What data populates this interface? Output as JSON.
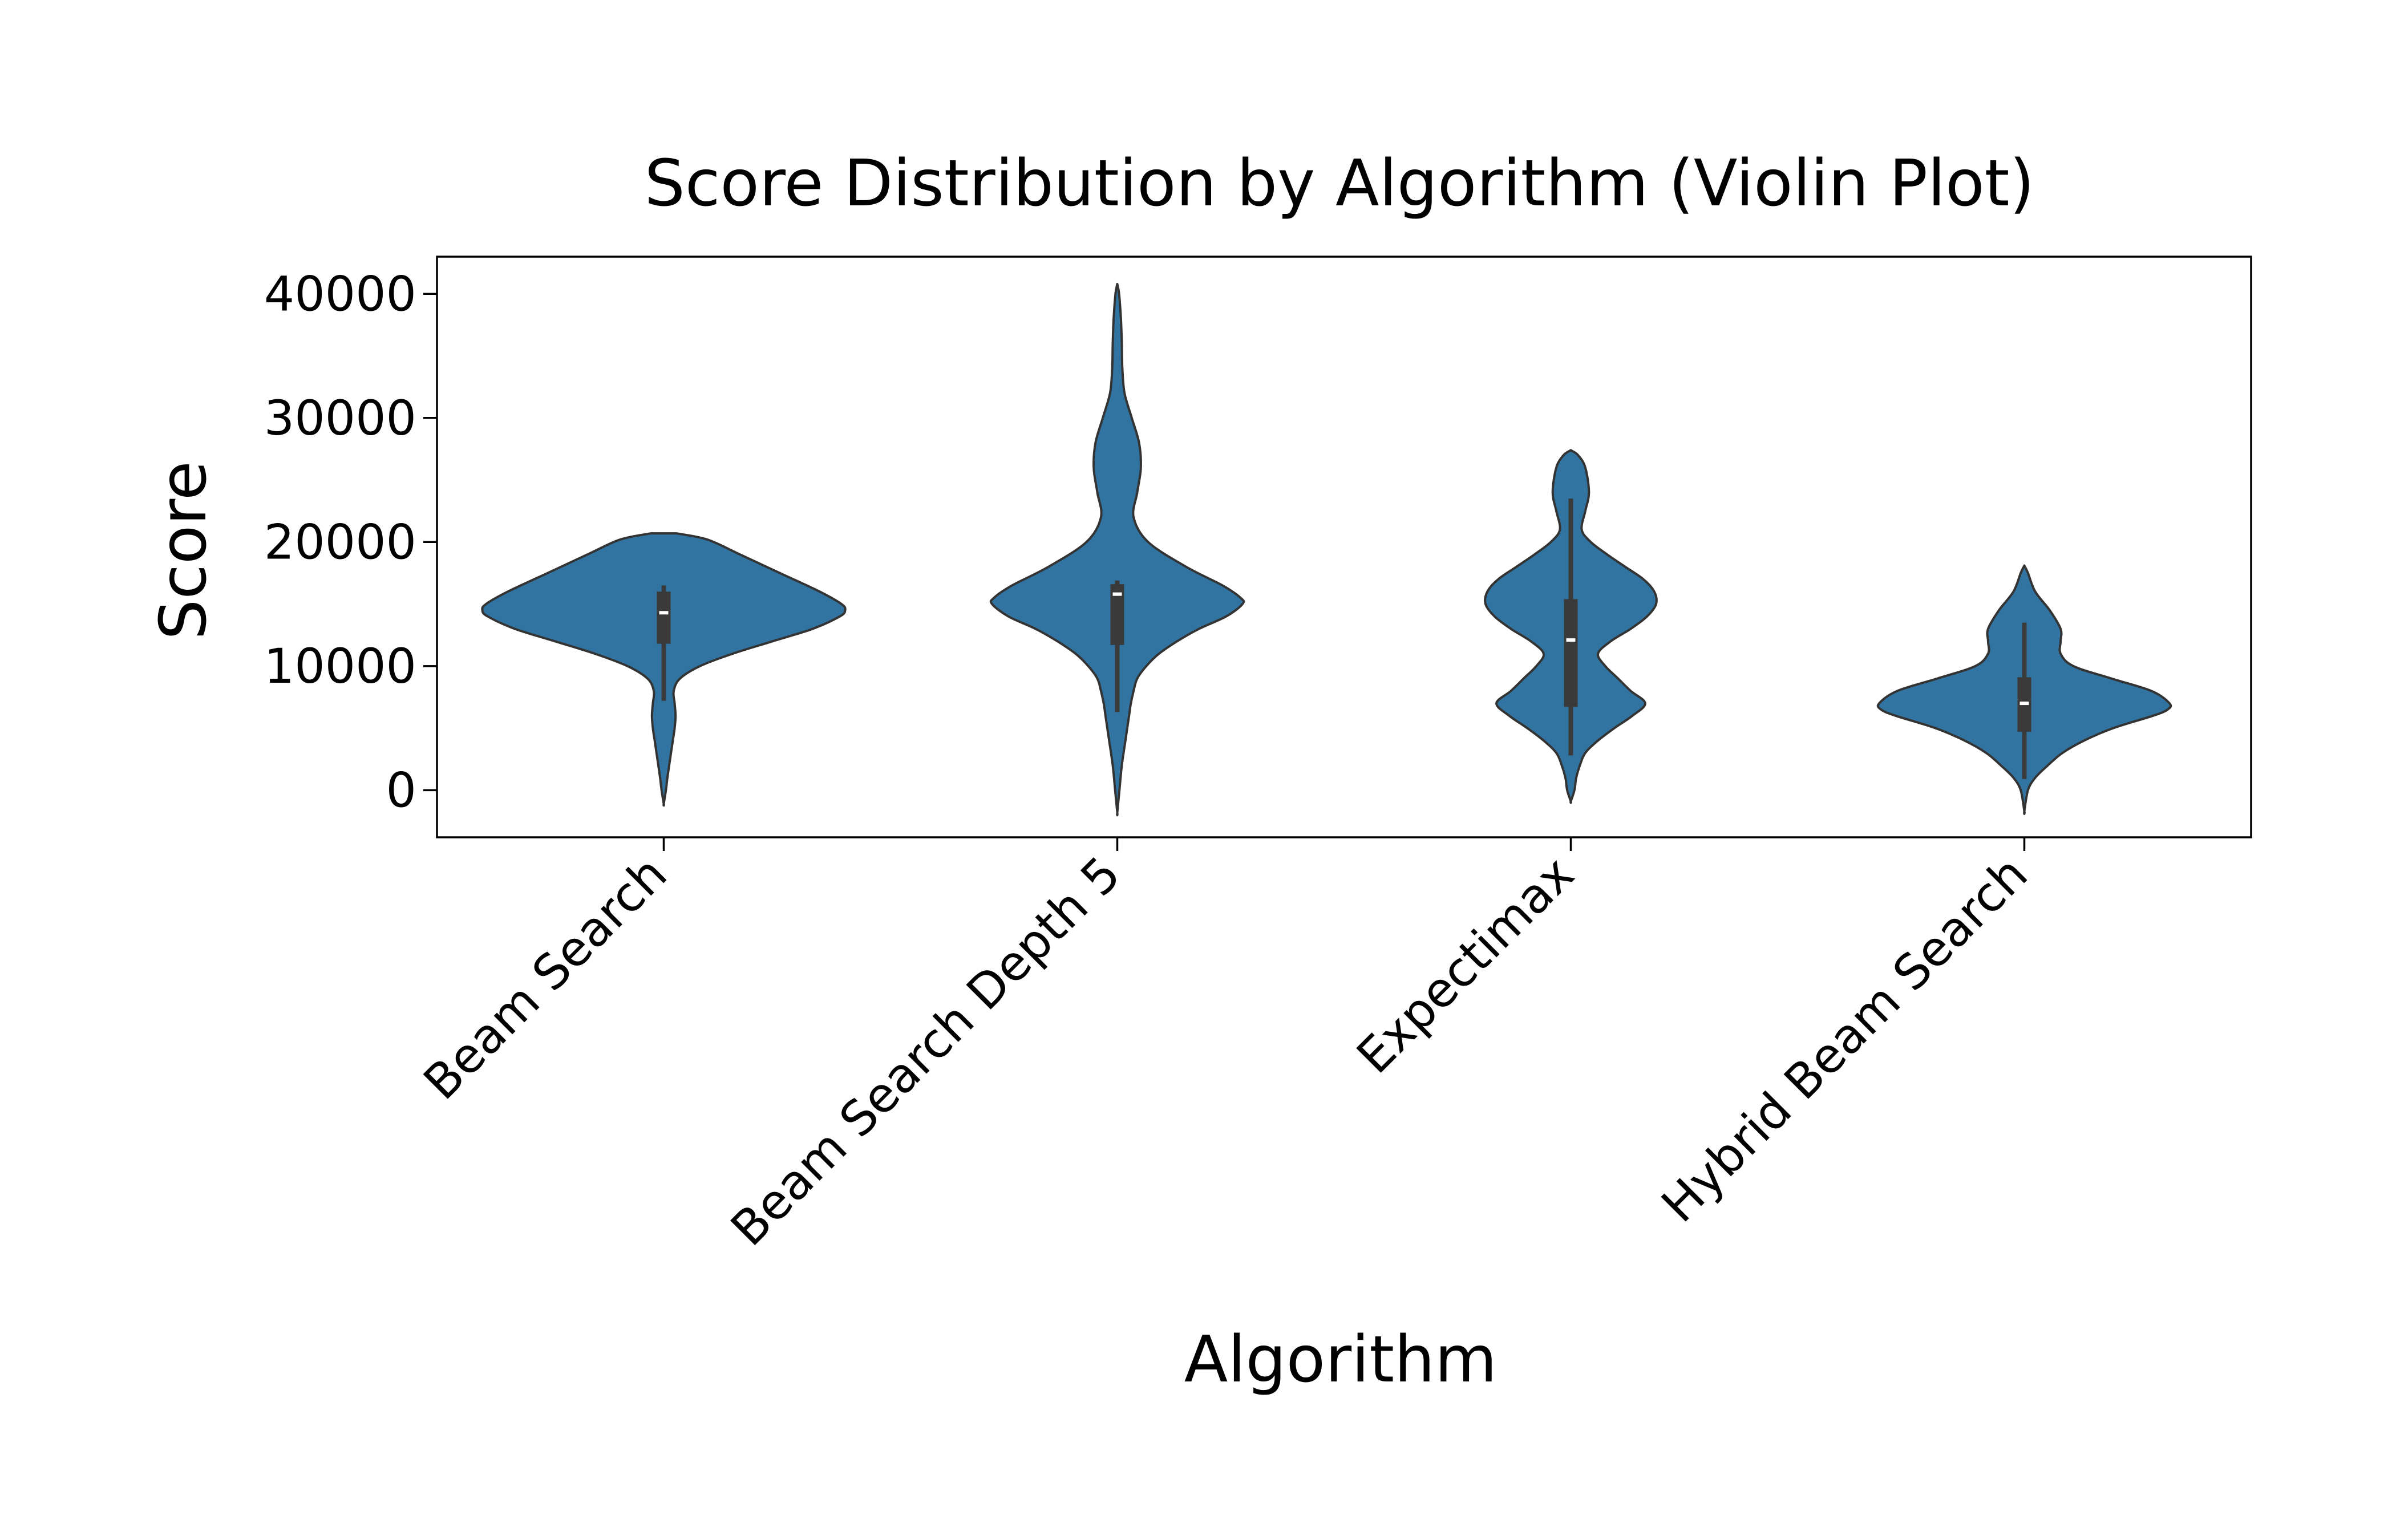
{
  "chart_data": {
    "type": "violin",
    "title": "Score Distribution by Algorithm (Violin Plot)",
    "xlabel": "Algorithm",
    "ylabel": "Score",
    "ylim": [
      -3800,
      43000
    ],
    "yticks": [
      0,
      10000,
      20000,
      30000,
      40000
    ],
    "ytick_labels": [
      "0",
      "10000",
      "20000",
      "30000",
      "40000"
    ],
    "grid": false,
    "legend": false,
    "colors": {
      "violin": "#3274a1",
      "edge": "#333333",
      "box": "#3a3a3a",
      "median": "#ffffff"
    },
    "categories": [
      "Beam Search",
      "Beam Search Depth 5",
      "Expectimax",
      "Hybrid Beam Search"
    ],
    "violins": [
      {
        "category": "Beam Search",
        "min": 7200,
        "q1": 11800,
        "median": 14300,
        "q3": 16000,
        "max": 16500,
        "profile": [
          [
            20700,
            0.07
          ],
          [
            20200,
            0.24
          ],
          [
            19000,
            0.42
          ],
          [
            17500,
            0.64
          ],
          [
            16000,
            0.86
          ],
          [
            15000,
            0.98
          ],
          [
            14500,
            1.0
          ],
          [
            14000,
            0.97
          ],
          [
            13000,
            0.82
          ],
          [
            12000,
            0.6
          ],
          [
            11000,
            0.38
          ],
          [
            10000,
            0.2
          ],
          [
            9000,
            0.09
          ],
          [
            8000,
            0.055
          ],
          [
            7000,
            0.06
          ],
          [
            6000,
            0.065
          ],
          [
            5000,
            0.06
          ],
          [
            4000,
            0.05
          ],
          [
            3000,
            0.04
          ],
          [
            2000,
            0.03
          ],
          [
            1000,
            0.02
          ],
          [
            0,
            0.012
          ],
          [
            -1100,
            0.0
          ]
        ]
      },
      {
        "category": "Beam Search Depth 5",
        "min": 6300,
        "q1": 11700,
        "median": 15800,
        "q3": 16600,
        "max": 16900,
        "profile": [
          [
            40800,
            0.0
          ],
          [
            40000,
            0.01
          ],
          [
            38000,
            0.02
          ],
          [
            36000,
            0.025
          ],
          [
            34000,
            0.028
          ],
          [
            32000,
            0.04
          ],
          [
            30000,
            0.08
          ],
          [
            28000,
            0.12
          ],
          [
            26000,
            0.13
          ],
          [
            24000,
            0.11
          ],
          [
            22000,
            0.09
          ],
          [
            20000,
            0.17
          ],
          [
            18000,
            0.38
          ],
          [
            16500,
            0.58
          ],
          [
            15500,
            0.68
          ],
          [
            15000,
            0.69
          ],
          [
            14000,
            0.6
          ],
          [
            13000,
            0.45
          ],
          [
            12000,
            0.33
          ],
          [
            11000,
            0.23
          ],
          [
            10000,
            0.16
          ],
          [
            9000,
            0.11
          ],
          [
            8000,
            0.09
          ],
          [
            7000,
            0.075
          ],
          [
            6000,
            0.065
          ],
          [
            5000,
            0.055
          ],
          [
            4000,
            0.045
          ],
          [
            2000,
            0.025
          ],
          [
            0,
            0.012
          ],
          [
            -1800,
            0.0
          ]
        ]
      },
      {
        "category": "Expectimax",
        "min": 2800,
        "q1": 6700,
        "median": 12100,
        "q3": 15400,
        "max": 23500,
        "profile": [
          [
            27400,
            0.0
          ],
          [
            27000,
            0.04
          ],
          [
            26000,
            0.08
          ],
          [
            24000,
            0.1
          ],
          [
            22500,
            0.08
          ],
          [
            21000,
            0.06
          ],
          [
            20000,
            0.11
          ],
          [
            19000,
            0.2
          ],
          [
            18000,
            0.3
          ],
          [
            17000,
            0.4
          ],
          [
            16000,
            0.46
          ],
          [
            15000,
            0.47
          ],
          [
            14000,
            0.42
          ],
          [
            13000,
            0.33
          ],
          [
            12000,
            0.22
          ],
          [
            11000,
            0.15
          ],
          [
            10000,
            0.19
          ],
          [
            9000,
            0.26
          ],
          [
            8000,
            0.33
          ],
          [
            7000,
            0.41
          ],
          [
            6000,
            0.34
          ],
          [
            5000,
            0.24
          ],
          [
            4000,
            0.15
          ],
          [
            3000,
            0.08
          ],
          [
            2000,
            0.05
          ],
          [
            1000,
            0.03
          ],
          [
            0,
            0.02
          ],
          [
            -900,
            0.0
          ]
        ]
      },
      {
        "category": "Hybrid Beam Search",
        "min": 900,
        "q1": 4700,
        "median": 7000,
        "q3": 9100,
        "max": 13500,
        "profile": [
          [
            18100,
            0.0
          ],
          [
            17500,
            0.02
          ],
          [
            16000,
            0.06
          ],
          [
            14500,
            0.14
          ],
          [
            13000,
            0.2
          ],
          [
            12000,
            0.2
          ],
          [
            11000,
            0.2
          ],
          [
            10000,
            0.27
          ],
          [
            9000,
            0.48
          ],
          [
            8000,
            0.7
          ],
          [
            7000,
            0.8
          ],
          [
            6500,
            0.79
          ],
          [
            6000,
            0.71
          ],
          [
            5000,
            0.49
          ],
          [
            4000,
            0.33
          ],
          [
            3000,
            0.21
          ],
          [
            2000,
            0.13
          ],
          [
            1000,
            0.06
          ],
          [
            0,
            0.02
          ],
          [
            -1700,
            0.0
          ]
        ]
      }
    ]
  }
}
